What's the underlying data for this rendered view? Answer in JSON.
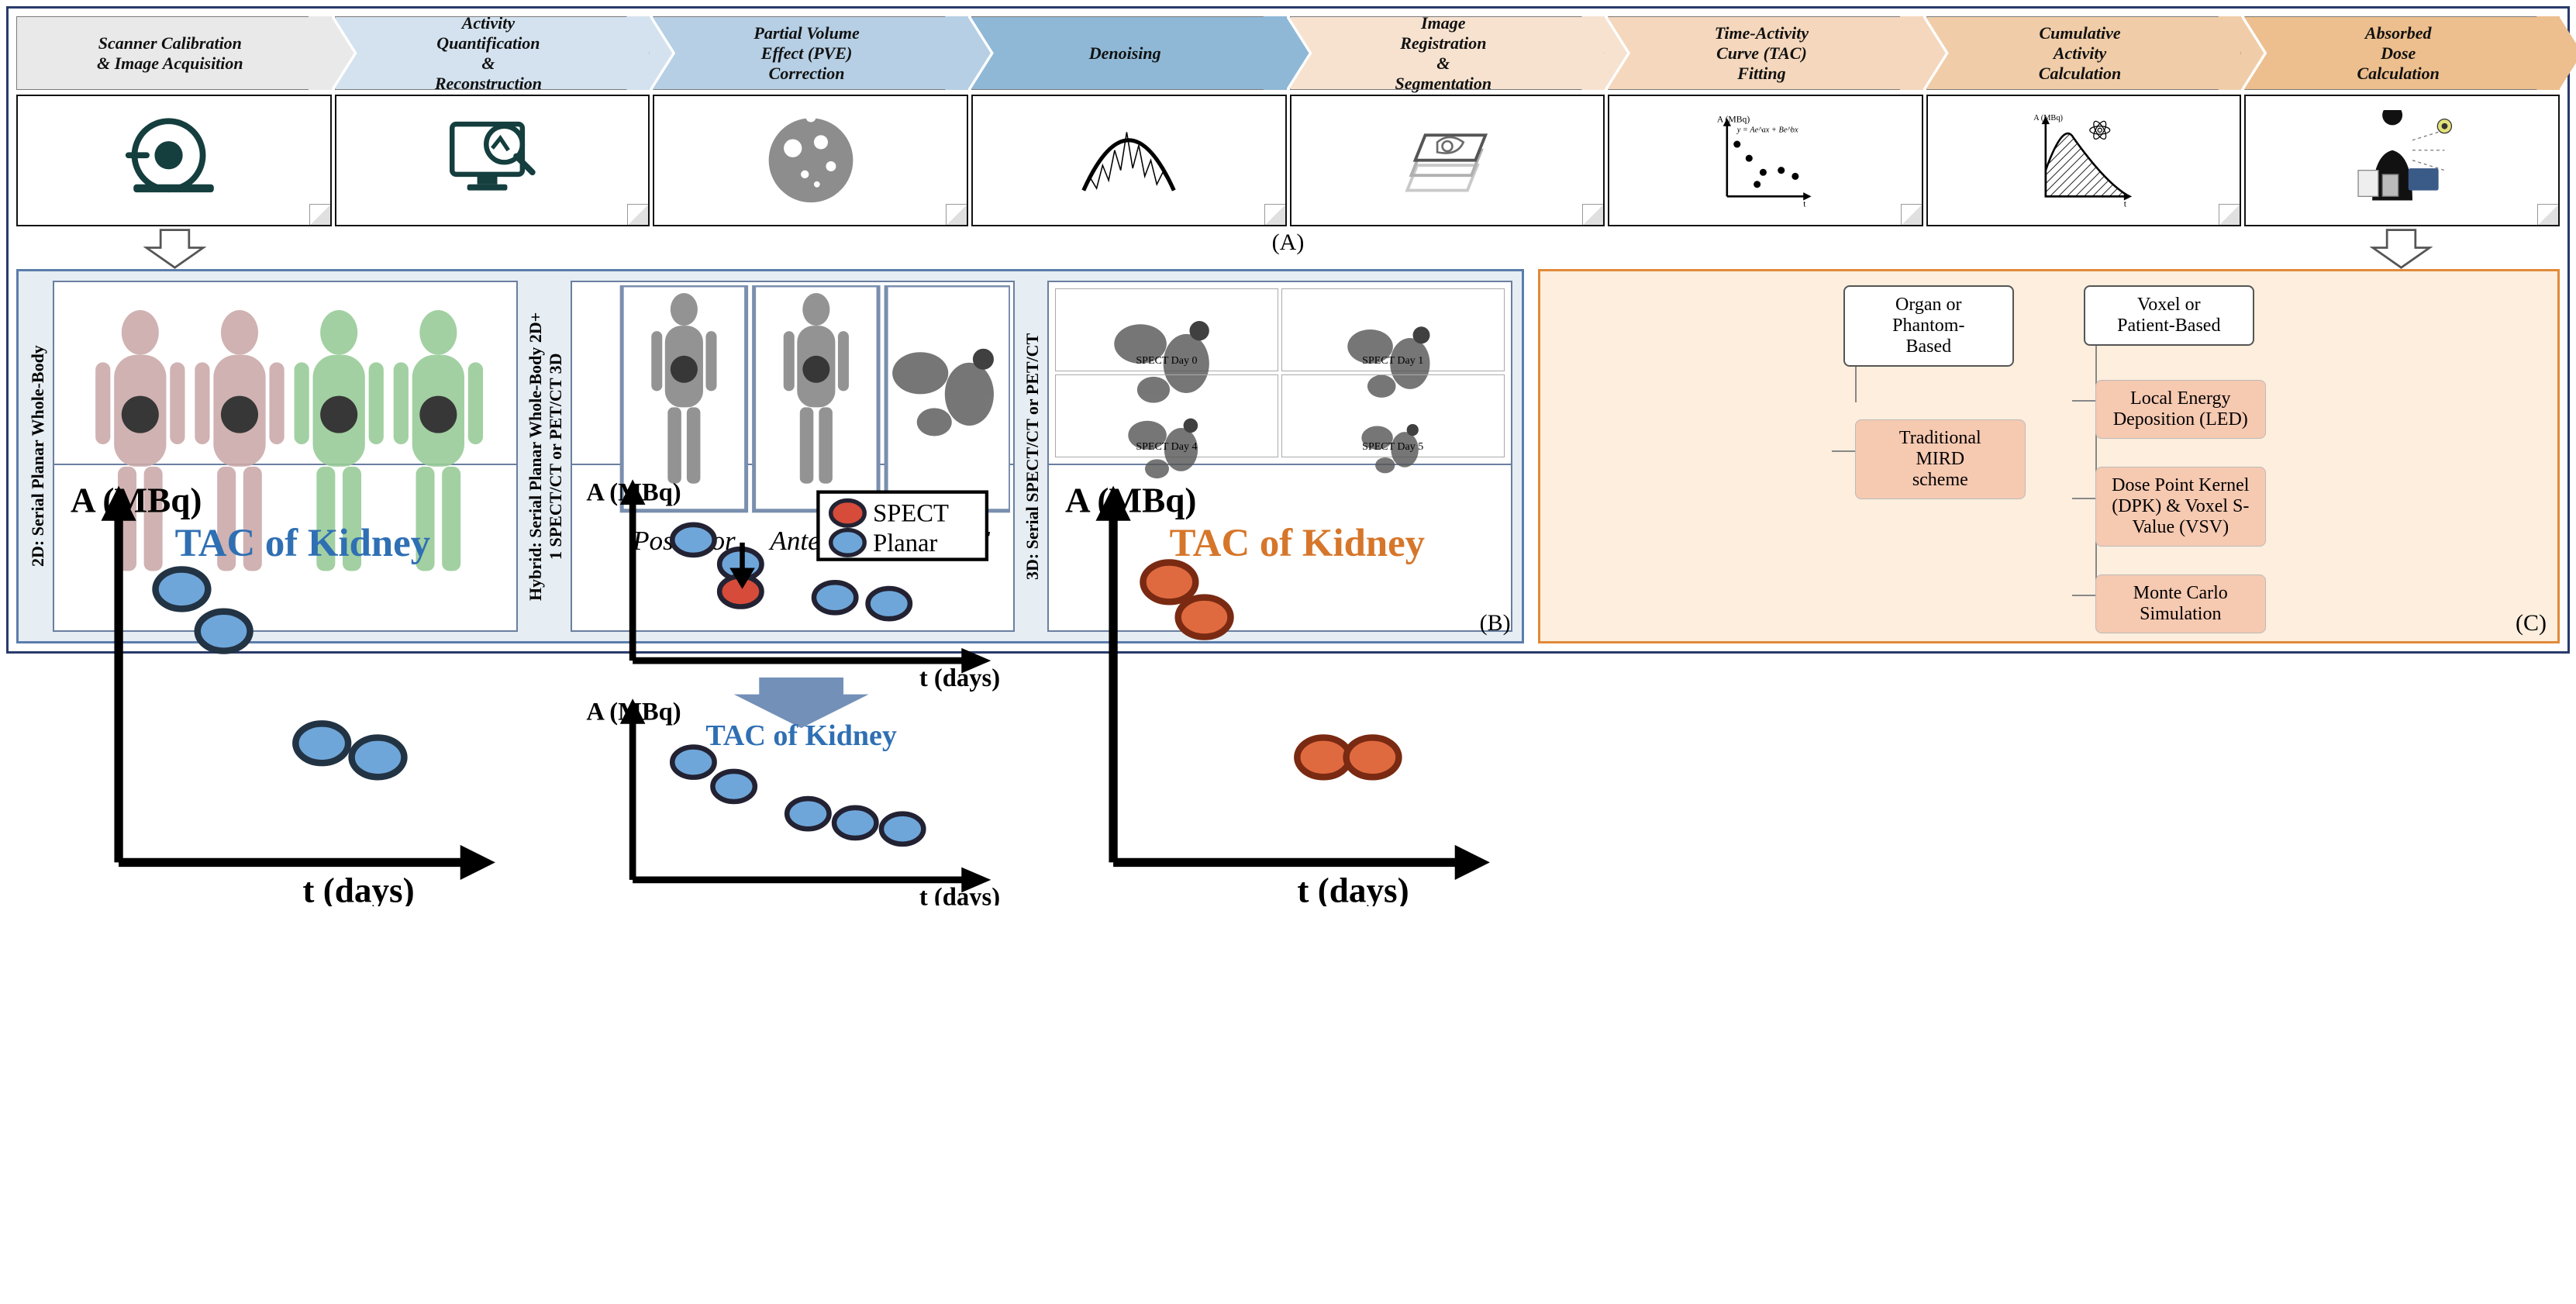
{
  "chevrons": [
    {
      "label": "Scanner Calibration\n& Image Acquisition",
      "bg": "#e9e9e9"
    },
    {
      "label": "Activity\nQuantification\n&\nReconstruction",
      "bg": "#d3e2ee"
    },
    {
      "label": "Partial Volume\nEffect (PVE)\nCorrection",
      "bg": "#b6cfe4"
    },
    {
      "label": "Denoising",
      "bg": "#8fb8d6"
    },
    {
      "label": "Image\nRegistration\n&\nSegmentation",
      "bg": "#f6e2cf"
    },
    {
      "label": "Time-Activity\nCurve (TAC)\nFitting",
      "bg": "#f4d7bc"
    },
    {
      "label": "Cumulative\nActivity\nCalculation",
      "bg": "#f0cda8"
    },
    {
      "label": "Absorbed\nDose\nCalculation",
      "bg": "#edbf8e"
    }
  ],
  "section_labels": {
    "a": "(A)",
    "b": "(B)",
    "c": "(C)"
  },
  "panelB": {
    "border_color": "#5b7dab",
    "bg": "#e6edf3",
    "cols": [
      {
        "vlabel": "2D: Serial  Planar Whole-Body",
        "tac_title": "TAC of Kidney",
        "tac_title_color": "#2f6fb3",
        "points": [
          {
            "x": 0.18,
            "y": 0.78
          },
          {
            "x": 0.3,
            "y": 0.66
          },
          {
            "x": 0.58,
            "y": 0.34
          },
          {
            "x": 0.74,
            "y": 0.3
          }
        ],
        "point_fill": "#6fa6d9",
        "point_stroke": "#234",
        "yl": "A (MBq)",
        "xl": "t (days)"
      },
      {
        "vlabel": "Hybrid: Serial  Planar Whole-Body 2D+\n1 SPECT/CT or PET/CT 3D",
        "legend_spect": "SPECT",
        "legend_planar": "Planar",
        "spect_color": "#d64b3a",
        "planar_color": "#6fa6d9",
        "tac_title": "TAC of Kidney",
        "tac_title_color": "#2f6fb3",
        "top_points": [
          {
            "x": 0.18,
            "y": 0.74,
            "c": "p"
          },
          {
            "x": 0.32,
            "y": 0.58,
            "c": "p"
          },
          {
            "x": 0.32,
            "y": 0.4,
            "c": "s"
          },
          {
            "x": 0.6,
            "y": 0.36,
            "c": "p"
          },
          {
            "x": 0.76,
            "y": 0.32,
            "c": "p"
          }
        ],
        "bot_points": [
          {
            "x": 0.18,
            "y": 0.72
          },
          {
            "x": 0.3,
            "y": 0.56
          },
          {
            "x": 0.52,
            "y": 0.38
          },
          {
            "x": 0.66,
            "y": 0.32
          },
          {
            "x": 0.8,
            "y": 0.28
          }
        ],
        "yl": "A (MBq)",
        "xl": "t (days)",
        "img_labels": [
          "Posterior",
          "Anterior",
          "SPECT"
        ]
      },
      {
        "vlabel": "3D: Serial SPECT/CT or PET/CT",
        "tac_title": "TAC of Kidney",
        "tac_title_color": "#d6762a",
        "points": [
          {
            "x": 0.16,
            "y": 0.8
          },
          {
            "x": 0.26,
            "y": 0.7
          },
          {
            "x": 0.6,
            "y": 0.3
          },
          {
            "x": 0.74,
            "y": 0.3
          }
        ],
        "point_fill": "#e06a3f",
        "point_stroke": "#7a2a12",
        "spect_days": [
          "SPECT Day 0",
          "SPECT Day 1",
          "SPECT Day 4",
          "SPECT Day 5"
        ],
        "yl": "A (MBq)",
        "xl": "t (days)"
      }
    ]
  },
  "panelC": {
    "border_color": "#e18a3a",
    "bg": "#fdeedd",
    "child_bg": "#f6c9b1",
    "left_head": "Organ or\nPhantom-\nBased",
    "left_children": [
      "Traditional\nMIRD\nscheme"
    ],
    "right_head": "Voxel or\nPatient-Based",
    "right_children": [
      "Local Energy\nDeposition (LED)",
      "Dose Point Kernel\n(DPK) & Voxel S-\nValue (VSV)",
      "Monte Carlo\nSimulation"
    ]
  },
  "tac_formula": "y = Ae^{ax} + Be^{bx}"
}
